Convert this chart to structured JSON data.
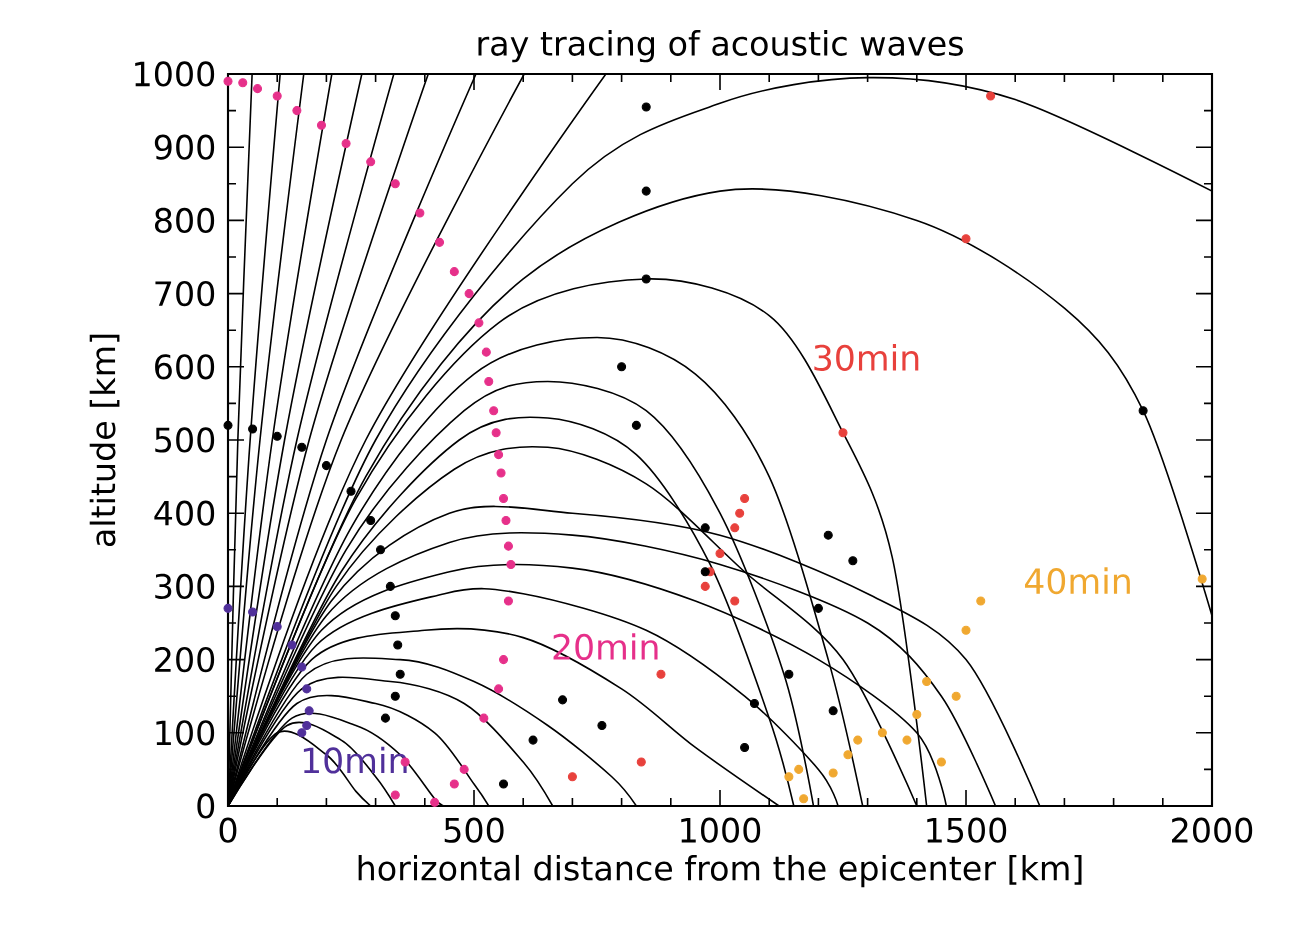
{
  "chart_data": {
    "type": "line",
    "title": "ray tracing of acoustic waves",
    "xlabel": "horizontal distance from the epicenter [km]",
    "ylabel": "altitude [km]",
    "xlim": [
      0,
      2000
    ],
    "ylim": [
      0,
      1000
    ],
    "xticks": [
      0,
      500,
      1000,
      1500,
      2000
    ],
    "yticks": [
      0,
      100,
      200,
      300,
      400,
      500,
      600,
      700,
      800,
      900,
      1000
    ],
    "legend": false,
    "grid": false,
    "annotations": [
      "10min",
      "20min",
      "30min",
      "40min"
    ],
    "series": [
      {
        "color": "#000000",
        "x": [
          0,
          20,
          49
        ],
        "values": [
          0,
          500,
          1000
        ]
      },
      {
        "color": "#000000",
        "x": [
          0,
          45,
          106
        ],
        "values": [
          0,
          500,
          1000
        ]
      },
      {
        "color": "#000000",
        "x": [
          0,
          65,
          154
        ],
        "values": [
          0,
          500,
          1000
        ]
      },
      {
        "color": "#000000",
        "x": [
          0,
          90,
          211
        ],
        "values": [
          0,
          500,
          1000
        ]
      },
      {
        "color": "#000000",
        "x": [
          0,
          115,
          272
        ],
        "values": [
          0,
          500,
          1000
        ]
      },
      {
        "color": "#000000",
        "x": [
          0,
          140,
          337
        ],
        "values": [
          0,
          500,
          1000
        ]
      },
      {
        "color": "#000000",
        "x": [
          0,
          165,
          407
        ],
        "values": [
          0,
          500,
          1000
        ]
      },
      {
        "color": "#000000",
        "x": [
          0,
          200,
          504
        ],
        "values": [
          0,
          500,
          1000
        ]
      },
      {
        "color": "#000000",
        "x": [
          0,
          230,
          602
        ],
        "values": [
          0,
          500,
          1000
        ]
      },
      {
        "color": "#000000",
        "x": [
          0,
          280,
          768
        ],
        "values": [
          0,
          500,
          1000
        ]
      },
      {
        "color": "#000000",
        "x": [
          0,
          300,
          700,
          1000,
          1300,
          1600,
          2000
        ],
        "values": [
          0,
          500,
          850,
          960,
          995,
          965,
          840
        ]
      },
      {
        "color": "#000000",
        "x": [
          0,
          280,
          600,
          1000,
          1400,
          1700,
          1860,
          2000
        ],
        "values": [
          0,
          450,
          720,
          840,
          800,
          680,
          540,
          260
        ]
      },
      {
        "color": "#000000",
        "x": [
          0,
          260,
          550,
          850,
          1100,
          1250,
          1350,
          1420
        ],
        "values": [
          0,
          420,
          660,
          720,
          670,
          510,
          340,
          0
        ]
      },
      {
        "color": "#000000",
        "x": [
          0,
          250,
          500,
          750,
          950,
          1100,
          1220,
          1290
        ],
        "values": [
          0,
          380,
          590,
          640,
          590,
          450,
          200,
          0
        ]
      },
      {
        "color": "#000000",
        "x": [
          0,
          240,
          480,
          650,
          850,
          1000,
          1130,
          1190
        ],
        "values": [
          0,
          350,
          540,
          580,
          540,
          400,
          180,
          0
        ]
      },
      {
        "color": "#000000",
        "x": [
          0,
          230,
          470,
          650,
          830,
          980,
          1100,
          1150
        ],
        "values": [
          0,
          320,
          500,
          530,
          480,
          330,
          120,
          0
        ]
      },
      {
        "color": "#000000",
        "x": [
          0,
          220,
          460,
          650,
          850,
          1050,
          1250,
          1400
        ],
        "values": [
          0,
          300,
          460,
          490,
          440,
          320,
          200,
          0
        ]
      },
      {
        "color": "#000000",
        "x": [
          0,
          210,
          450,
          700,
          1000,
          1300,
          1500,
          1650
        ],
        "values": [
          0,
          280,
          400,
          400,
          370,
          290,
          200,
          0
        ]
      },
      {
        "color": "#000000",
        "x": [
          0,
          200,
          450,
          700,
          1000,
          1300,
          1450,
          1560
        ],
        "values": [
          0,
          260,
          360,
          370,
          330,
          250,
          150,
          0
        ]
      },
      {
        "color": "#000000",
        "x": [
          0,
          190,
          450,
          700,
          950,
          1200,
          1400,
          1460
        ],
        "values": [
          0,
          240,
          320,
          325,
          280,
          200,
          100,
          0
        ]
      },
      {
        "color": "#000000",
        "x": [
          0,
          180,
          440,
          600,
          850,
          1050,
          1200,
          1240
        ],
        "values": [
          0,
          220,
          290,
          290,
          240,
          150,
          50,
          0
        ]
      },
      {
        "color": "#000000",
        "x": [
          0,
          170,
          400,
          600,
          800,
          950,
          1120
        ],
        "values": [
          0,
          200,
          240,
          230,
          160,
          80,
          0
        ]
      },
      {
        "color": "#000000",
        "x": [
          0,
          160,
          350,
          500,
          650,
          780,
          830
        ],
        "values": [
          0,
          180,
          200,
          170,
          110,
          40,
          0
        ]
      },
      {
        "color": "#000000",
        "x": [
          0,
          150,
          330,
          480,
          600,
          660
        ],
        "values": [
          0,
          160,
          170,
          140,
          60,
          0
        ]
      },
      {
        "color": "#000000",
        "x": [
          0,
          140,
          300,
          420,
          500,
          530
        ],
        "values": [
          0,
          140,
          140,
          100,
          30,
          0
        ]
      },
      {
        "color": "#000000",
        "x": [
          0,
          130,
          260,
          350,
          420,
          440
        ],
        "values": [
          0,
          120,
          110,
          70,
          10,
          0
        ]
      },
      {
        "color": "#000000",
        "x": [
          0,
          120,
          230,
          300,
          340
        ],
        "values": [
          0,
          110,
          90,
          40,
          0
        ]
      },
      {
        "color": "#000000",
        "x": [
          0,
          100,
          200,
          260,
          290
        ],
        "values": [
          0,
          100,
          70,
          20,
          0
        ]
      },
      {
        "type": "scatter",
        "color": "#50309a",
        "x": [
          0,
          50,
          100,
          130,
          150,
          160,
          165,
          160,
          150
        ],
        "values": [
          270,
          265,
          245,
          220,
          190,
          160,
          130,
          110,
          100
        ]
      },
      {
        "type": "scatter",
        "color": "#e6308a",
        "x": [
          0,
          30,
          60,
          100,
          140,
          190,
          240,
          290,
          340,
          390,
          430,
          460,
          490,
          510,
          525,
          530,
          540,
          545,
          550,
          555,
          560,
          565,
          570,
          575,
          570,
          560,
          550,
          520,
          480,
          460,
          420,
          360,
          340
        ],
        "values": [
          990,
          988,
          980,
          970,
          950,
          930,
          905,
          880,
          850,
          810,
          770,
          730,
          700,
          660,
          620,
          580,
          540,
          510,
          480,
          455,
          420,
          390,
          355,
          330,
          280,
          200,
          160,
          120,
          50,
          30,
          5,
          60,
          15
        ]
      },
      {
        "type": "scatter",
        "color": "#e8413c",
        "x": [
          1550,
          1500,
          1250,
          1050,
          1040,
          1030,
          1000,
          980,
          970,
          1030,
          880,
          700,
          840
        ],
        "values": [
          970,
          775,
          510,
          420,
          400,
          380,
          345,
          320,
          300,
          280,
          180,
          40,
          60
        ]
      },
      {
        "type": "scatter",
        "color": "#f0a830",
        "x": [
          1980,
          1530,
          1500,
          1420,
          1400,
          1480,
          1450,
          1380,
          1330,
          1260,
          1280,
          1140,
          1160,
          1170,
          1230
        ],
        "values": [
          310,
          280,
          240,
          170,
          125,
          150,
          60,
          90,
          100,
          70,
          90,
          40,
          50,
          10,
          45
        ]
      },
      {
        "type": "scatter",
        "color": "#000000",
        "x": [
          0,
          50,
          100,
          150,
          200,
          250,
          290,
          310,
          330,
          340,
          345,
          350,
          340,
          320,
          850,
          850,
          850,
          800,
          1860,
          830,
          970,
          970,
          1220,
          1270,
          1200,
          1140,
          1070,
          1230,
          1050,
          680,
          620,
          560,
          760
        ],
        "values": [
          520,
          515,
          505,
          490,
          465,
          430,
          390,
          350,
          300,
          260,
          220,
          180,
          150,
          120,
          955,
          840,
          720,
          600,
          540,
          520,
          380,
          320,
          370,
          335,
          270,
          180,
          140,
          130,
          80,
          145,
          90,
          30,
          110
        ]
      }
    ]
  }
}
